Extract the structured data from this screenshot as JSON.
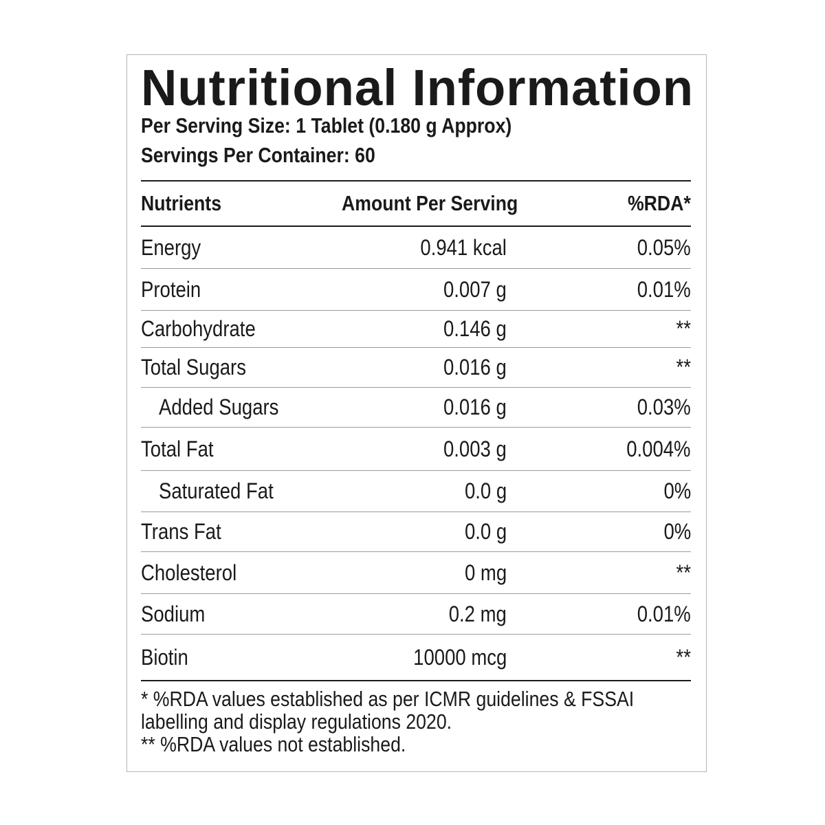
{
  "label": {
    "title": "Nutritional Information",
    "serving_size": "Per Serving Size: 1 Tablet (0.180 g Approx)",
    "servings_per_container": "Servings Per Container: 60"
  },
  "table": {
    "headers": {
      "nutrients": "Nutrients",
      "amount": "Amount Per Serving",
      "rda": "%RDA*"
    },
    "rows": [
      {
        "name": "Energy",
        "amount": "0.941 kcal",
        "rda": "0.05%"
      },
      {
        "name": "Protein",
        "amount": "0.007 g",
        "rda": "0.01%"
      },
      {
        "name": "Carbohydrate",
        "amount": "0.146 g",
        "rda": "**"
      },
      {
        "name": "Total Sugars",
        "amount": "0.016 g",
        "rda": "**"
      },
      {
        "name": "Added Sugars",
        "amount": "0.016 g",
        "rda": "0.03%"
      },
      {
        "name": "Total Fat",
        "amount": "0.003 g",
        "rda": "0.004%"
      },
      {
        "name": "Saturated Fat",
        "amount": "0.0 g",
        "rda": "0%"
      },
      {
        "name": "Trans Fat",
        "amount": "0.0 g",
        "rda": "0%"
      },
      {
        "name": "Cholesterol",
        "amount": "0 mg",
        "rda": "**"
      },
      {
        "name": "Sodium",
        "amount": "0.2 mg",
        "rda": "0.01%"
      },
      {
        "name": "Biotin",
        "amount": "10000 mcg",
        "rda": "**"
      }
    ]
  },
  "footnotes": {
    "line1": "* %RDA values established as per ICMR guidelines & FSSAI",
    "line2": "labelling and display regulations 2020.",
    "line3": "** %RDA values not established."
  }
}
